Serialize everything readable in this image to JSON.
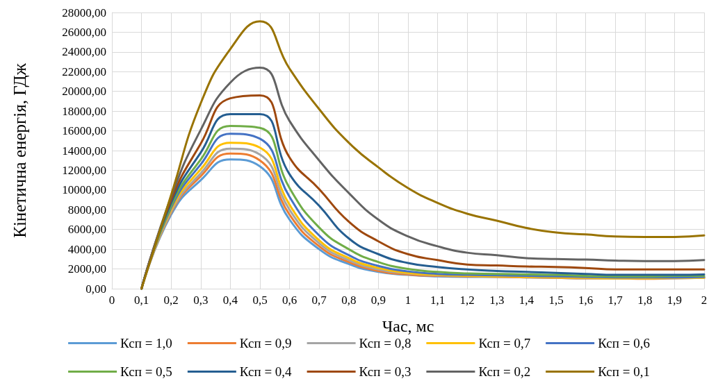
{
  "chart_data": {
    "type": "line",
    "xlabel": "Час, мс",
    "ylabel": "Кінетична енергія, ГДж",
    "x": [
      0.1,
      0.2,
      0.3,
      0.4,
      0.5,
      0.6,
      0.7,
      0.8,
      0.9,
      1.0,
      1.1,
      1.2,
      1.3,
      1.4,
      1.5,
      1.6,
      1.7,
      1.8,
      1.9,
      2.0
    ],
    "series": [
      {
        "name": "Ксп = 1,0",
        "color": "#5b9bd5",
        "values": [
          0,
          7500,
          11000,
          13100,
          12400,
          7000,
          4000,
          2500,
          1700,
          1400,
          1250,
          1200,
          1200,
          1150,
          1100,
          1050,
          1050,
          1050,
          1100,
          1100
        ]
      },
      {
        "name": "Ксп = 0,9",
        "color": "#ed7d31",
        "values": [
          0,
          7700,
          11400,
          13700,
          13000,
          7500,
          4300,
          2700,
          1800,
          1450,
          1300,
          1250,
          1200,
          1150,
          1100,
          1050,
          1050,
          1000,
          1050,
          1100
        ]
      },
      {
        "name": "Ксп = 0,8",
        "color": "#a5a5a5",
        "values": [
          0,
          7800,
          11700,
          14200,
          13600,
          8000,
          4600,
          2900,
          1950,
          1550,
          1350,
          1300,
          1250,
          1200,
          1150,
          1100,
          1050,
          1050,
          1050,
          1100
        ]
      },
      {
        "name": "Ксп = 0,7",
        "color": "#ffc000",
        "values": [
          0,
          8000,
          12100,
          14800,
          14300,
          8500,
          4900,
          3100,
          2100,
          1600,
          1400,
          1300,
          1250,
          1200,
          1150,
          1100,
          1050,
          1050,
          1100,
          1100
        ]
      },
      {
        "name": "Ксп = 0,6",
        "color": "#4472c4",
        "values": [
          0,
          8200,
          12600,
          15700,
          15200,
          9300,
          5400,
          3400,
          2300,
          1750,
          1500,
          1400,
          1350,
          1300,
          1250,
          1200,
          1150,
          1150,
          1150,
          1200
        ]
      },
      {
        "name": "Ксп = 0,5",
        "color": "#70ad47",
        "values": [
          0,
          8400,
          13100,
          16500,
          16300,
          10200,
          6200,
          4000,
          2700,
          2000,
          1700,
          1550,
          1500,
          1450,
          1400,
          1300,
          1250,
          1250,
          1300,
          1300
        ]
      },
      {
        "name": "Ксп = 0,4",
        "color": "#255e91",
        "values": [
          0,
          8700,
          13800,
          17700,
          17700,
          11600,
          8400,
          5100,
          3500,
          2600,
          2200,
          1950,
          1800,
          1700,
          1600,
          1500,
          1400,
          1400,
          1400,
          1450
        ]
      },
      {
        "name": "Ксп = 0,3",
        "color": "#9e480e",
        "values": [
          0,
          9000,
          14700,
          19300,
          19600,
          13300,
          10100,
          6800,
          4800,
          3500,
          2900,
          2450,
          2350,
          2250,
          2200,
          2100,
          1950,
          1950,
          1950,
          1950
        ]
      },
      {
        "name": "Ксп = 0,2",
        "color": "#636363",
        "values": [
          0,
          9300,
          16100,
          20900,
          22400,
          17000,
          13000,
          9700,
          7000,
          5300,
          4300,
          3650,
          3400,
          3100,
          3000,
          2950,
          2850,
          2800,
          2800,
          2900
        ]
      },
      {
        "name": "Ксп = 0,1",
        "color": "#997300",
        "values": [
          0,
          9500,
          18800,
          24300,
          27100,
          22300,
          18200,
          14800,
          12300,
          10200,
          8700,
          7600,
          6900,
          6150,
          5700,
          5500,
          5300,
          5250,
          5250,
          5400
        ]
      }
    ],
    "xlim": [
      0,
      2
    ],
    "xticks": [
      0,
      {
        "value": 0.1,
        "label": "0,1"
      },
      {
        "value": 0.2,
        "label": "0,2"
      },
      {
        "value": 0.3,
        "label": "0,3"
      },
      {
        "value": 0.4,
        "label": "0,4"
      },
      {
        "value": 0.5,
        "label": "0,5"
      },
      {
        "value": 0.6,
        "label": "0,6"
      },
      {
        "value": 0.7,
        "label": "0,7"
      },
      {
        "value": 0.8,
        "label": "0,8"
      },
      {
        "value": 0.9,
        "label": "0,9"
      },
      1,
      {
        "value": 1.1,
        "label": "1,1"
      },
      {
        "value": 1.2,
        "label": "1,2"
      },
      {
        "value": 1.3,
        "label": "1,3"
      },
      {
        "value": 1.4,
        "label": "1,4"
      },
      {
        "value": 1.5,
        "label": "1,5"
      },
      {
        "value": 1.6,
        "label": "1,6"
      },
      {
        "value": 1.7,
        "label": "1,7"
      },
      {
        "value": 1.8,
        "label": "1,8"
      },
      {
        "value": 1.9,
        "label": "1,9"
      },
      2
    ],
    "ylim": [
      0,
      28000
    ],
    "yticks": [
      {
        "value": 0,
        "label": "0,00"
      },
      {
        "value": 2000,
        "label": "2000,00"
      },
      {
        "value": 4000,
        "label": "4000,00"
      },
      {
        "value": 6000,
        "label": "6000,00"
      },
      {
        "value": 8000,
        "label": "8000,00"
      },
      {
        "value": 10000,
        "label": "10000,00"
      },
      {
        "value": 12000,
        "label": "12000,00"
      },
      {
        "value": 14000,
        "label": "14000,00"
      },
      {
        "value": 16000,
        "label": "16000,00"
      },
      {
        "value": 18000,
        "label": "18000,00"
      },
      {
        "value": 20000,
        "label": "20000,00"
      },
      {
        "value": 22000,
        "label": "22000,00"
      },
      {
        "value": 24000,
        "label": "24000,00"
      },
      {
        "value": 26000,
        "label": "26000,00"
      },
      {
        "value": 28000,
        "label": "28000,00"
      }
    ],
    "grid": true,
    "legend": "bottom"
  }
}
